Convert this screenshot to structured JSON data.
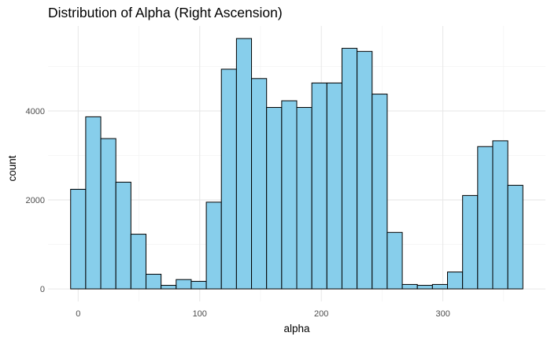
{
  "chart_data": {
    "type": "bar",
    "title": "Distribution of Alpha (Right Ascension)",
    "xlabel": "alpha",
    "ylabel": "count",
    "bin_width": 12.4,
    "bins": [
      {
        "x0": -6.2,
        "x1": 6.2,
        "count": 2240
      },
      {
        "x0": 6.2,
        "x1": 18.6,
        "count": 3870
      },
      {
        "x0": 18.6,
        "x1": 31.0,
        "count": 3380
      },
      {
        "x0": 31.0,
        "x1": 43.4,
        "count": 2400
      },
      {
        "x0": 43.4,
        "x1": 55.8,
        "count": 1230
      },
      {
        "x0": 55.8,
        "x1": 68.2,
        "count": 330
      },
      {
        "x0": 68.2,
        "x1": 80.6,
        "count": 80
      },
      {
        "x0": 80.6,
        "x1": 93.0,
        "count": 210
      },
      {
        "x0": 93.0,
        "x1": 105.4,
        "count": 170
      },
      {
        "x0": 105.4,
        "x1": 117.8,
        "count": 1950
      },
      {
        "x0": 117.8,
        "x1": 130.2,
        "count": 4940
      },
      {
        "x0": 130.2,
        "x1": 142.6,
        "count": 5630
      },
      {
        "x0": 142.6,
        "x1": 155.0,
        "count": 4730
      },
      {
        "x0": 155.0,
        "x1": 167.4,
        "count": 4080
      },
      {
        "x0": 167.4,
        "x1": 179.8,
        "count": 4230
      },
      {
        "x0": 179.8,
        "x1": 192.2,
        "count": 4080
      },
      {
        "x0": 192.2,
        "x1": 204.6,
        "count": 4630
      },
      {
        "x0": 204.6,
        "x1": 217.0,
        "count": 4630
      },
      {
        "x0": 217.0,
        "x1": 229.4,
        "count": 5410
      },
      {
        "x0": 229.4,
        "x1": 241.8,
        "count": 5340
      },
      {
        "x0": 241.8,
        "x1": 254.2,
        "count": 4380
      },
      {
        "x0": 254.2,
        "x1": 266.6,
        "count": 1270
      },
      {
        "x0": 266.6,
        "x1": 279.0,
        "count": 100
      },
      {
        "x0": 279.0,
        "x1": 291.4,
        "count": 80
      },
      {
        "x0": 291.4,
        "x1": 303.8,
        "count": 100
      },
      {
        "x0": 303.8,
        "x1": 316.2,
        "count": 380
      },
      {
        "x0": 316.2,
        "x1": 328.6,
        "count": 2100
      },
      {
        "x0": 328.6,
        "x1": 341.0,
        "count": 3200
      },
      {
        "x0": 341.0,
        "x1": 353.4,
        "count": 3330
      },
      {
        "x0": 353.4,
        "x1": 365.8,
        "count": 2330
      }
    ],
    "x_ticks": [
      0,
      100,
      200,
      300
    ],
    "x_tick_labels": [
      "0",
      "100",
      "200",
      "300"
    ],
    "y_ticks": [
      0,
      2000,
      4000
    ],
    "y_tick_labels": [
      "0",
      "2000",
      "4000"
    ],
    "xlim": [
      -24.8,
      384.4
    ],
    "ylim": [
      -282,
      5912
    ],
    "grid": true,
    "legend": "none",
    "colors": {
      "bar_fill": "#87CEEB",
      "bar_stroke": "#000000",
      "grid_major": "#e6e6e6",
      "grid_minor": "#f2f2f2",
      "tick_text": "#4d4d4d"
    }
  }
}
